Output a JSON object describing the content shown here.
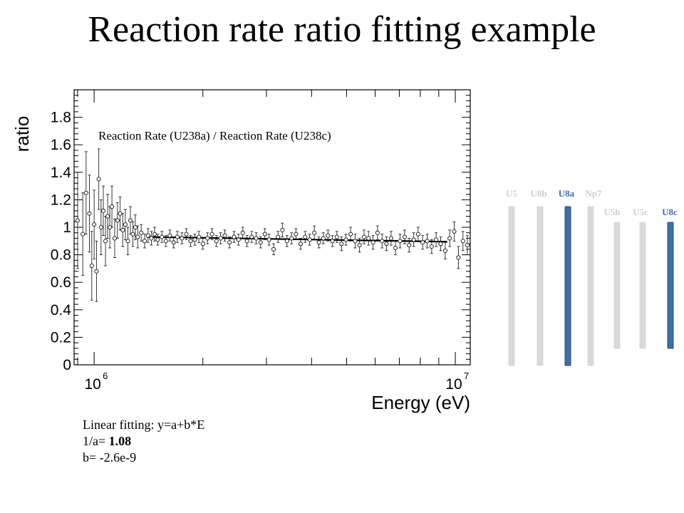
{
  "slide": {
    "title": "Reaction rate ratio fitting example"
  },
  "fit_notes": {
    "line1": "Linear fitting: y=a+b*E",
    "line2_prefix": "1/a= ",
    "line2_value": "1.08",
    "line3": "b= -2.6e-9"
  },
  "colors": {
    "highlight_rod": "#3f6ea8",
    "highlight_rod_edge": "#274a78",
    "inactive_rod": "#d9d9d9",
    "inactive_label": "#cfcfcf",
    "highlight_label": "#3f6ea8"
  },
  "rods": [
    {
      "label": "U5",
      "highlight": false
    },
    {
      "label": "U8b",
      "highlight": false
    },
    {
      "label": "U8a",
      "highlight": true
    },
    {
      "label": "Np7",
      "highlight": false
    },
    {
      "label": "U5b",
      "highlight": false
    },
    {
      "label": "U5c",
      "highlight": false
    },
    {
      "label": "U8c",
      "highlight": true
    }
  ],
  "chart_data": {
    "type": "scatter",
    "annotation": "Reaction Rate (U238a) / Reaction Rate (U238c)",
    "xlabel": "Energy (eV)",
    "ylabel": "ratio",
    "x_scale": "log",
    "xlim": [
      880000,
      11000000
    ],
    "ylim": [
      0,
      2.0
    ],
    "x_tick_labels": [
      {
        "base": "10",
        "exp": "6",
        "value": 1000000
      },
      {
        "base": "10",
        "exp": "7",
        "value": 10000000
      }
    ],
    "y_ticks": [
      0,
      0.2,
      0.4,
      0.6,
      0.8,
      1,
      1.2,
      1.4,
      1.6,
      1.8
    ],
    "y_tick_labels": [
      "0",
      "0.2",
      "0.4",
      "0.6",
      "0.8",
      "1",
      "1.2",
      "1.4",
      "1.6",
      "1.8"
    ],
    "grid": false,
    "series": [
      {
        "marker": "open-circle",
        "x": [
          900000,
          930000,
          950000,
          970000,
          985000,
          1000000,
          1015000,
          1030000,
          1045000,
          1060000,
          1075000,
          1090000,
          1105000,
          1120000,
          1140000,
          1160000,
          1180000,
          1200000,
          1220000,
          1240000,
          1260000,
          1280000,
          1300000,
          1320000,
          1350000,
          1380000,
          1410000,
          1440000,
          1470000,
          1500000,
          1540000,
          1580000,
          1620000,
          1660000,
          1700000,
          1750000,
          1800000,
          1850000,
          1900000,
          1950000,
          2000000,
          2060000,
          2120000,
          2180000,
          2240000,
          2300000,
          2370000,
          2440000,
          2510000,
          2580000,
          2650000,
          2730000,
          2810000,
          2890000,
          2970000,
          3050000,
          3140000,
          3230000,
          3320000,
          3420000,
          3520000,
          3620000,
          3730000,
          3840000,
          3950000,
          4070000,
          4190000,
          4310000,
          4440000,
          4570000,
          4700000,
          4840000,
          4980000,
          5130000,
          5280000,
          5430000,
          5590000,
          5750000,
          5920000,
          6090000,
          6270000,
          6450000,
          6640000,
          6830000,
          7030000,
          7240000,
          7450000,
          7670000,
          7890000,
          8120000,
          8360000,
          8600000,
          8850000,
          9110000,
          9380000,
          9650000,
          9930000,
          10200000,
          10500000,
          10800000
        ],
        "y": [
          1.05,
          0.95,
          1.25,
          1.1,
          0.72,
          1.02,
          0.68,
          1.35,
          1.0,
          1.12,
          0.9,
          1.08,
          1.0,
          1.15,
          0.92,
          1.05,
          1.1,
          0.98,
          1.02,
          0.9,
          1.05,
          0.95,
          1.0,
          0.93,
          0.96,
          0.9,
          0.94,
          0.92,
          0.95,
          0.91,
          0.93,
          0.9,
          0.94,
          0.89,
          0.93,
          0.92,
          0.95,
          0.9,
          0.91,
          0.93,
          0.88,
          0.92,
          0.95,
          0.9,
          0.92,
          0.94,
          0.89,
          0.93,
          0.91,
          0.96,
          0.9,
          0.93,
          0.92,
          0.89,
          0.95,
          0.91,
          0.84,
          0.93,
          0.98,
          0.9,
          0.92,
          0.95,
          0.88,
          0.93,
          0.91,
          0.96,
          0.89,
          0.92,
          0.94,
          0.9,
          0.93,
          0.88,
          0.91,
          0.95,
          0.9,
          0.87,
          0.93,
          0.92,
          0.89,
          0.96,
          0.9,
          0.88,
          0.92,
          0.85,
          0.9,
          0.93,
          0.87,
          0.91,
          0.95,
          0.89,
          0.9,
          0.86,
          0.91,
          0.88,
          0.83,
          0.92,
          0.97,
          0.78,
          0.9,
          0.87
        ],
        "err": [
          0.35,
          0.3,
          0.3,
          0.28,
          0.25,
          0.25,
          0.22,
          0.22,
          0.2,
          0.18,
          0.18,
          0.16,
          0.15,
          0.15,
          0.14,
          0.13,
          0.12,
          0.12,
          0.11,
          0.1,
          0.1,
          0.09,
          0.09,
          0.08,
          0.06,
          0.05,
          0.05,
          0.05,
          0.05,
          0.04,
          0.04,
          0.04,
          0.04,
          0.04,
          0.04,
          0.04,
          0.04,
          0.04,
          0.04,
          0.04,
          0.04,
          0.04,
          0.04,
          0.04,
          0.04,
          0.04,
          0.04,
          0.04,
          0.04,
          0.04,
          0.04,
          0.04,
          0.04,
          0.04,
          0.04,
          0.04,
          0.04,
          0.04,
          0.05,
          0.04,
          0.04,
          0.04,
          0.04,
          0.04,
          0.04,
          0.05,
          0.04,
          0.04,
          0.04,
          0.04,
          0.04,
          0.05,
          0.04,
          0.05,
          0.05,
          0.05,
          0.05,
          0.05,
          0.05,
          0.05,
          0.05,
          0.05,
          0.05,
          0.05,
          0.05,
          0.05,
          0.05,
          0.05,
          0.05,
          0.05,
          0.05,
          0.05,
          0.05,
          0.05,
          0.06,
          0.06,
          0.07,
          0.08,
          0.07,
          0.07
        ]
      }
    ],
    "fit_line": {
      "x": [
        1400000,
        9500000
      ],
      "y": [
        0.93,
        0.895
      ]
    }
  }
}
